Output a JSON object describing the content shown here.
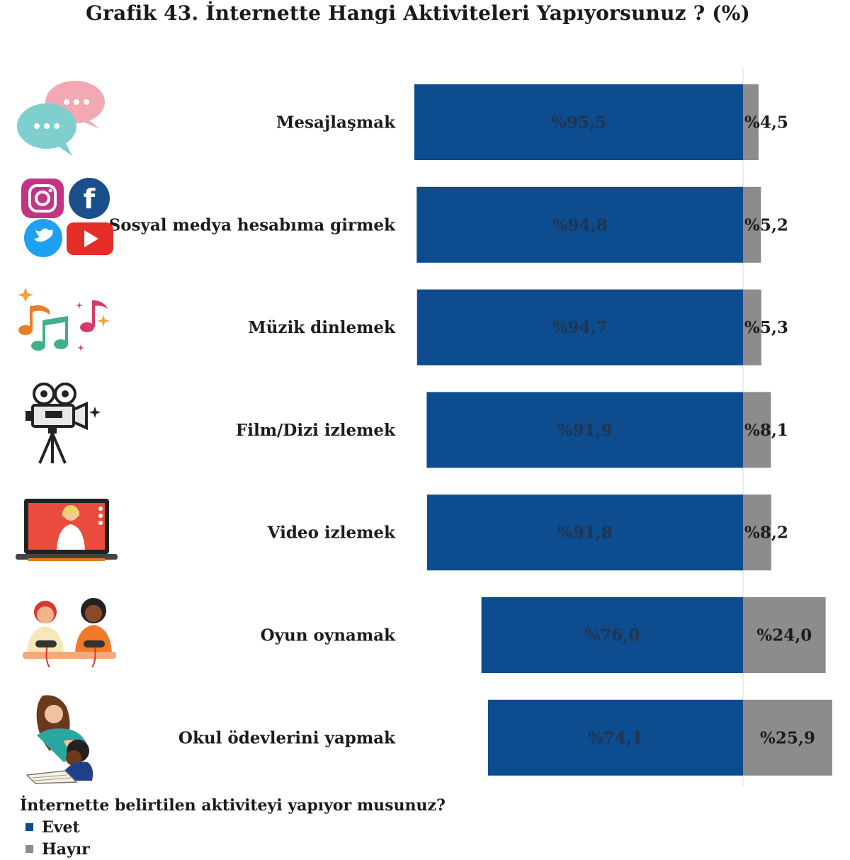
{
  "chart_data": {
    "type": "bar",
    "orientation": "horizontal",
    "stacked": true,
    "title": "Grafik 43. İnternette Hangi Aktiviteleri Yapıyorsunuz ? (%)",
    "categories": [
      "Mesajlaşmak",
      "Sosyal medya hesabıma girmek",
      "Müzik dinlemek",
      "Film/Dizi izlemek",
      "Video izlemek",
      "Oyun oynamak",
      "Okul ödevlerini yapmak"
    ],
    "series": [
      {
        "name": "Evet",
        "color": "#0d4c8e",
        "values": [
          95.5,
          94.8,
          94.7,
          91.9,
          91.8,
          76.0,
          74.1
        ],
        "labels": [
          "%95,5",
          "%94,8",
          "%94,7",
          "%91,9",
          "%91,8",
          "%76,0",
          "%74,1"
        ]
      },
      {
        "name": "Hayır",
        "color": "#8c8c8c",
        "values": [
          4.5,
          5.2,
          5.3,
          8.1,
          8.2,
          24.0,
          25.9
        ],
        "labels": [
          "%4,5",
          "%5,2",
          "%5,3",
          "%8,1",
          "%8,2",
          "%24,0",
          "%25,9"
        ]
      }
    ],
    "legend_title": "İnternette belirtilen aktiviteyi yapıyor musunuz?",
    "legend_position": "bottom-left"
  },
  "icons": [
    "speech-bubbles-icon",
    "social-media-icon",
    "music-notes-icon",
    "film-camera-icon",
    "laptop-video-icon",
    "gamers-icon",
    "homework-icon"
  ]
}
